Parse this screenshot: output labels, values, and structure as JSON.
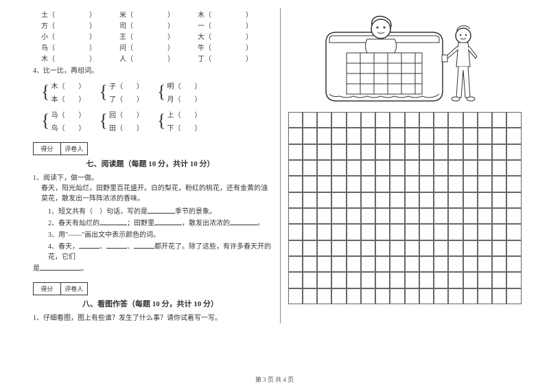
{
  "chars": {
    "row1": [
      "土",
      "米",
      "木"
    ],
    "row2": [
      "方",
      "司",
      "一"
    ],
    "row3": [
      "小",
      "王",
      "大"
    ],
    "row4": [
      "鸟",
      "问",
      "牛"
    ],
    "row5": [
      "木",
      "人",
      "丁"
    ]
  },
  "q4": "4、比一比，再组词。",
  "groups": {
    "set1": [
      [
        "木",
        "本"
      ],
      [
        "子",
        "了"
      ],
      [
        "明",
        "月"
      ]
    ],
    "set2": [
      [
        "马",
        "鸟"
      ],
      [
        "回",
        "田"
      ],
      [
        "上",
        "下"
      ]
    ]
  },
  "score": {
    "col1": "得分",
    "col2": "评卷人"
  },
  "section7": {
    "title": "七、阅读题（每题 10 分，共计 10 分）",
    "q1": "1、阅读下，做一做。",
    "para1": "春天，阳光灿烂，田野里百花盛开。白的梨花，粉红的桃花，还有金黄的油菜花，散发出一阵阵浓浓的香味。",
    "sub1_a": "1、短文共有（　）句话，写的是",
    "sub1_b": "季节的景象。",
    "sub2_a": "2、春天有灿烂的",
    "sub2_b": "；田野里",
    "sub2_c": "，散发出浓浓的",
    "sub2_d": "。",
    "sub3": "3、用\"——\"画出文中表示颜色的词。",
    "sub4_a": "4、春天，",
    "sub4_b": "都开花了。除了这些，有许多春天开的花，它们",
    "sub4_c": "是"
  },
  "section8": {
    "title": "八、看图作答（每题 10 分，共计 10 分）",
    "q1": "1、仔细看图，图上有些谁？发生了什么事？请你试着写一写。"
  },
  "footer": "第 3 页 共 4 页",
  "grid": {
    "cols": 16,
    "rows": 12
  }
}
